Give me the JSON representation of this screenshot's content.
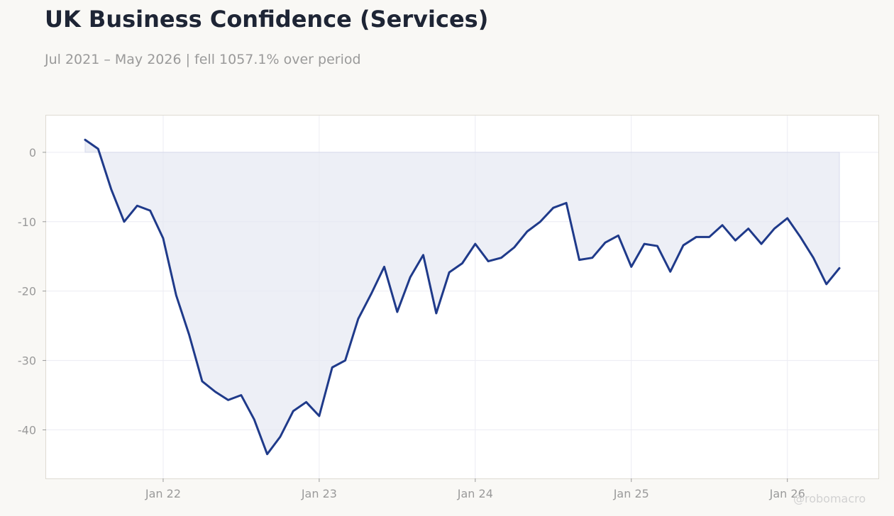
{
  "title": "UK Business Confidence (Services)",
  "subtitle": "Jul 2021 – May 2026 | fell 1057.1% over period",
  "credit": "@robomacro",
  "colors": {
    "line": "#1f3a8a",
    "fill": "#e6e8f2",
    "background": "#f9f8f5",
    "plot_background": "#ffffff"
  },
  "chart_data": {
    "type": "area",
    "title": "UK Business Confidence (Services)",
    "xlabel": "",
    "ylabel": "",
    "ylim": [
      -47,
      5.3
    ],
    "xlim": [
      "2021-04",
      "2026-08"
    ],
    "yticks": [
      0,
      -10,
      -20,
      -30,
      -40
    ],
    "ytick_labels": [
      "0",
      "-10",
      "-20",
      "-30",
      "-40"
    ],
    "xticks": [
      "2022-01",
      "2023-01",
      "2024-01",
      "2025-01",
      "2026-01"
    ],
    "xtick_labels": [
      "Jan 22",
      "Jan 23",
      "Jan 24",
      "Jan 25",
      "Jan 26"
    ],
    "grid": true,
    "x": [
      "2021-07",
      "2021-08",
      "2021-09",
      "2021-10",
      "2021-11",
      "2021-12",
      "2022-01",
      "2022-02",
      "2022-03",
      "2022-04",
      "2022-05",
      "2022-06",
      "2022-07",
      "2022-08",
      "2022-09",
      "2022-10",
      "2022-11",
      "2022-12",
      "2023-01",
      "2023-02",
      "2023-03",
      "2023-04",
      "2023-05",
      "2023-06",
      "2023-07",
      "2023-08",
      "2023-09",
      "2023-10",
      "2023-11",
      "2023-12",
      "2024-01",
      "2024-02",
      "2024-03",
      "2024-04",
      "2024-05",
      "2024-06",
      "2024-07",
      "2024-08",
      "2024-09",
      "2024-10",
      "2024-11",
      "2024-12",
      "2025-01",
      "2025-02",
      "2025-03",
      "2025-04",
      "2025-05",
      "2025-06",
      "2025-07",
      "2025-08",
      "2025-09",
      "2025-10",
      "2025-11",
      "2025-12",
      "2026-01",
      "2026-02",
      "2026-03",
      "2026-04",
      "2026-05"
    ],
    "series": [
      {
        "values": [
          1.8,
          0.5,
          -5.3,
          -10.0,
          -7.7,
          -8.4,
          -12.4,
          -20.6,
          -26.3,
          -33.0,
          -34.5,
          -35.7,
          -35.0,
          -38.5,
          -43.5,
          -41.0,
          -37.3,
          -36.0,
          -38.0,
          -31.0,
          -30.0,
          -24.0,
          -20.4,
          -16.5,
          -23.0,
          -18.0,
          -14.8,
          -23.2,
          -17.3,
          -16.0,
          -13.2,
          -15.7,
          -15.2,
          -13.7,
          -11.4,
          -10.0,
          -8.0,
          -7.3,
          -15.5,
          -15.2,
          -13.0,
          -12.0,
          -16.5,
          -13.2,
          -13.5,
          -17.2,
          -13.4,
          -12.2,
          -12.2,
          -10.5,
          -12.7,
          -11.0,
          -13.2,
          -11.0,
          -9.5,
          -12.2,
          -15.2,
          -19.0,
          -16.7
        ]
      }
    ]
  }
}
